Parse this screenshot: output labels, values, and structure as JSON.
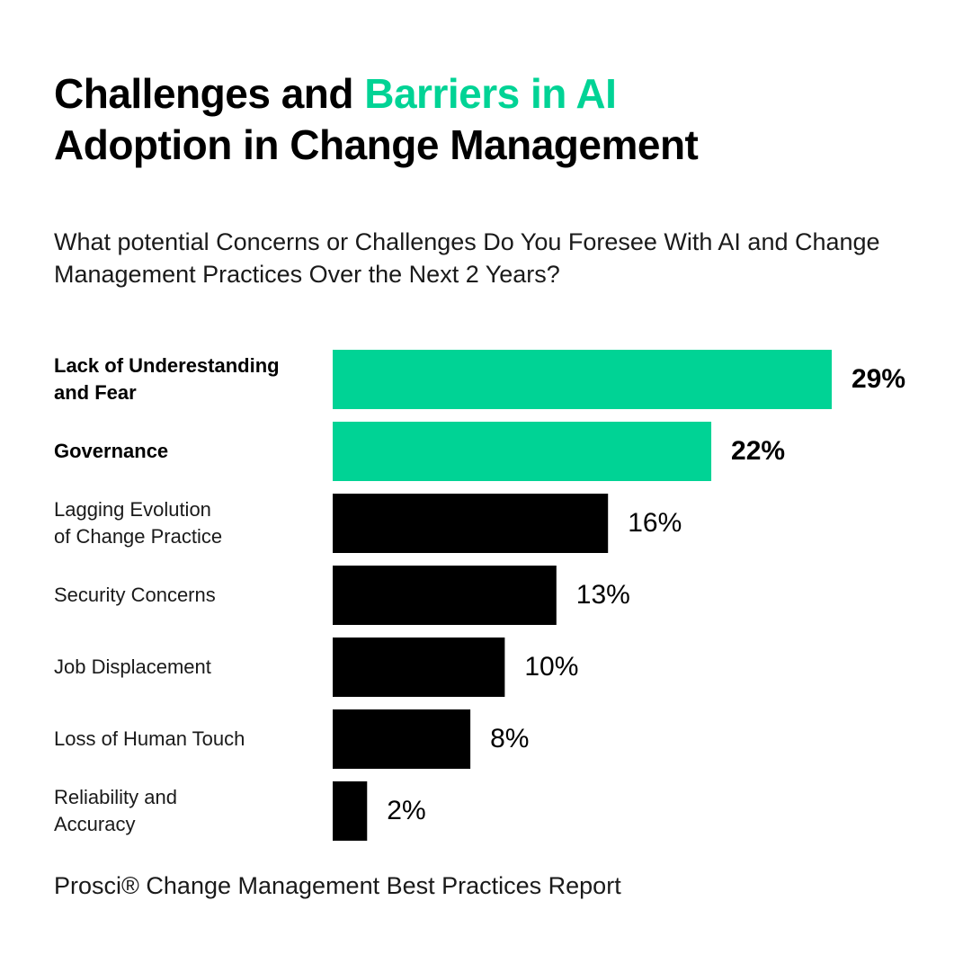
{
  "title": {
    "part1": "Challenges and ",
    "highlight": "Barriers in AI",
    "part2": "Adoption in Change Management"
  },
  "subtitle": "What potential Concerns or Challenges Do You Foresee With AI and Change Management Practices Over the Next 2 Years?",
  "source": "Prosci® Change Management Best Practices Report",
  "colors": {
    "accent": "#00d395",
    "default_bar": "#000000",
    "text": "#000000"
  },
  "chart_data": {
    "type": "bar",
    "orientation": "horizontal",
    "title": "What potential Concerns or Challenges Do You Foresee With AI and Change Management Practices Over the Next 2 Years?",
    "categories": [
      "Lack of Underestanding and Fear",
      "Governance",
      "Lagging Evolution of Change Practice",
      "Security Concerns",
      "Job Displacement",
      "Loss of Human Touch",
      "Reliability and Accuracy"
    ],
    "label_lines": [
      [
        "Lack of Underestanding",
        "and Fear"
      ],
      [
        "Governance"
      ],
      [
        "Lagging Evolution",
        "of Change Practice"
      ],
      [
        "Security Concerns"
      ],
      [
        "Job Displacement"
      ],
      [
        "Loss of Human Touch"
      ],
      [
        "Reliability and",
        "Accuracy"
      ]
    ],
    "values": [
      29,
      22,
      16,
      13,
      10,
      8,
      2
    ],
    "value_labels": [
      "29%",
      "22%",
      "16%",
      "13%",
      "10%",
      "8%",
      "2%"
    ],
    "highlighted": [
      true,
      true,
      false,
      false,
      false,
      false,
      false
    ],
    "xlim": [
      0,
      29
    ],
    "unit": "%"
  }
}
